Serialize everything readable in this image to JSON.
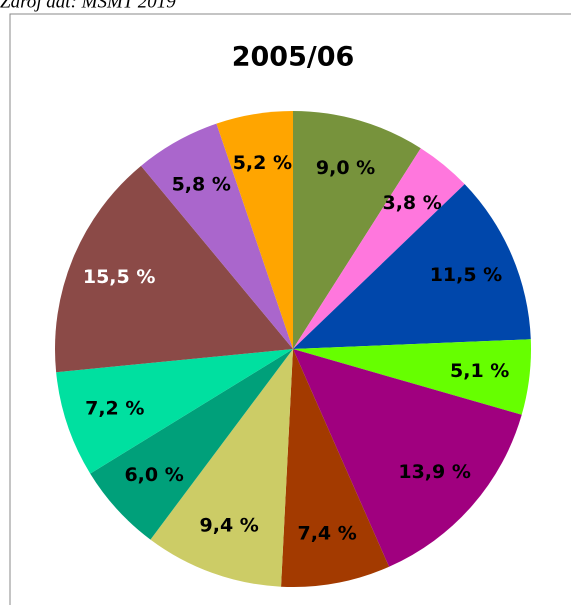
{
  "chart_data": {
    "type": "pie",
    "title": "2005/06",
    "source": "Zdroj dat: MSMT 2019",
    "values": [
      9.0,
      3.8,
      11.5,
      5.1,
      13.9,
      7.4,
      9.4,
      6.0,
      7.2,
      15.5,
      5.8,
      5.2
    ],
    "value_labels": [
      "9,0 %",
      "3,8 %",
      "11,5 %",
      "5,1 %",
      "13,9 %",
      "7,4 %",
      "9,4 %",
      "6,0 %",
      "7,2 %",
      "15,5 %",
      "5,8 %",
      "5,2 %"
    ],
    "colors": [
      "#77933c",
      "#ff77dd",
      "#0047ab",
      "#66ff00",
      "#a0007f",
      "#a33a00",
      "#cccc66",
      "#00a07a",
      "#00e0a0",
      "#8b4a47",
      "#aa66cc",
      "#ffa500"
    ]
  }
}
